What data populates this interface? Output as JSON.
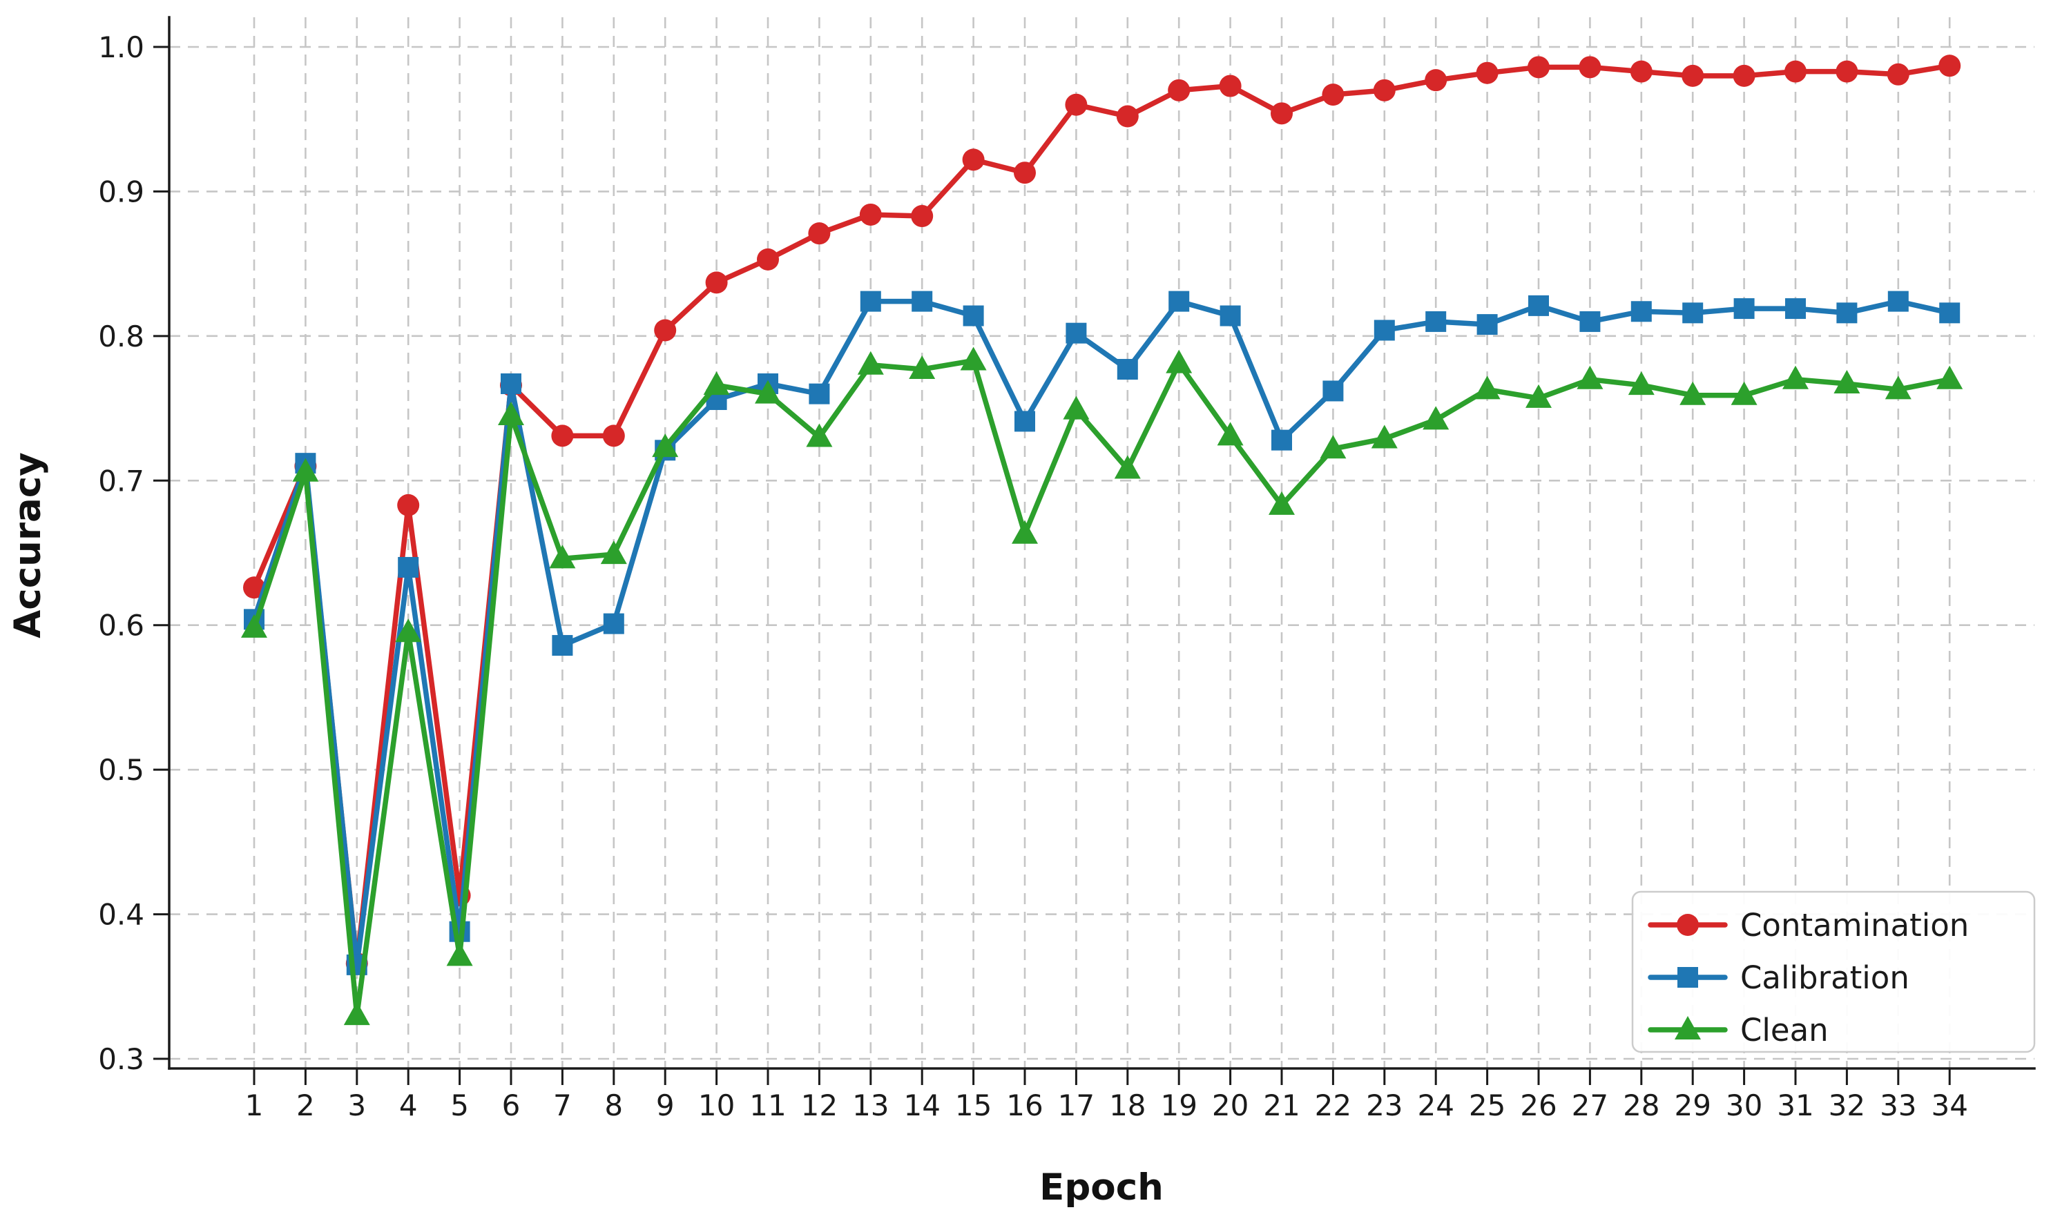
{
  "chart_data": {
    "type": "line",
    "title": "",
    "xlabel": "Epoch",
    "ylabel": "Accuracy",
    "x": [
      1,
      2,
      3,
      4,
      5,
      6,
      7,
      8,
      9,
      10,
      11,
      12,
      13,
      14,
      15,
      16,
      17,
      18,
      19,
      20,
      21,
      22,
      23,
      24,
      25,
      26,
      27,
      28,
      29,
      30,
      31,
      32,
      33,
      34
    ],
    "x_tick_labels": [
      "1",
      "2",
      "3",
      "4",
      "5",
      "6",
      "7",
      "8",
      "9",
      "10",
      "11",
      "12",
      "13",
      "14",
      "15",
      "16",
      "17",
      "18",
      "19",
      "20",
      "21",
      "22",
      "23",
      "24",
      "25",
      "26",
      "27",
      "28",
      "29",
      "30",
      "31",
      "32",
      "33",
      "34"
    ],
    "y_ticks": [
      1.0,
      0.9,
      0.8,
      0.7,
      0.6,
      0.5,
      0.4,
      0.3
    ],
    "y_tick_labels": [
      "1.0",
      "0.9",
      "0.8",
      "0.7",
      "0.6",
      "0.5",
      "0.4",
      "0.3"
    ],
    "ylim": [
      0.293,
      1.03
    ],
    "xlim": [
      -0.65,
      35.6
    ],
    "grid": true,
    "grid_style": "dashed",
    "legend_position": "lower right",
    "background_color": "#ffffff",
    "grid_color": "#c6c6c6",
    "series": [
      {
        "name": "Contamination",
        "color": "#d62728",
        "marker": "circle",
        "values": [
          0.626,
          0.71,
          0.366,
          0.683,
          0.413,
          0.766,
          0.731,
          0.731,
          0.804,
          0.837,
          0.853,
          0.871,
          0.884,
          0.883,
          0.922,
          0.913,
          0.96,
          0.952,
          0.97,
          0.973,
          0.954,
          0.967,
          0.97,
          0.977,
          0.982,
          0.986,
          0.986,
          0.983,
          0.98,
          0.98,
          0.983,
          0.983,
          0.981,
          0.987
        ]
      },
      {
        "name": "Calibration",
        "color": "#1f77b4",
        "marker": "square",
        "values": [
          0.604,
          0.712,
          0.365,
          0.64,
          0.388,
          0.767,
          0.586,
          0.601,
          0.721,
          0.756,
          0.767,
          0.76,
          0.824,
          0.824,
          0.814,
          0.741,
          0.802,
          0.777,
          0.824,
          0.814,
          0.728,
          0.762,
          0.804,
          0.81,
          0.808,
          0.821,
          0.81,
          0.817,
          0.816,
          0.819,
          0.819,
          0.816,
          0.824,
          0.816
        ]
      },
      {
        "name": "Clean",
        "color": "#2ca02c",
        "marker": "triangle-up",
        "values": [
          0.598,
          0.706,
          0.33,
          0.595,
          0.371,
          0.745,
          0.646,
          0.649,
          0.723,
          0.766,
          0.76,
          0.73,
          0.78,
          0.777,
          0.783,
          0.663,
          0.749,
          0.708,
          0.781,
          0.731,
          0.683,
          0.722,
          0.729,
          0.742,
          0.763,
          0.757,
          0.77,
          0.766,
          0.759,
          0.759,
          0.77,
          0.767,
          0.763,
          0.77
        ]
      }
    ]
  }
}
